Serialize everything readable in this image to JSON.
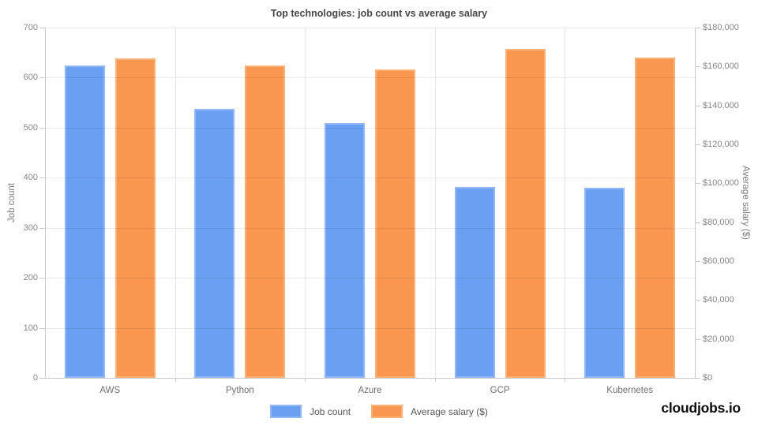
{
  "chart": {
    "footer_brand": "cloudjobs.io"
  },
  "chart_data": {
    "type": "bar",
    "title": "Top technologies: job count vs average salary",
    "categories": [
      "AWS",
      "Python",
      "Azure",
      "GCP",
      "Kubernetes"
    ],
    "series": [
      {
        "name": "Job count",
        "axis": "left",
        "color": "#6B9FF1",
        "border_color": "#92B7F5",
        "values": [
          624,
          538,
          510,
          382,
          380
        ]
      },
      {
        "name": "Average salary ($)",
        "axis": "right",
        "color": "#F9964F",
        "border_color": "#FAB279",
        "values": [
          164200,
          160600,
          158600,
          169100,
          164700
        ]
      }
    ],
    "left_axis": {
      "title": "Job count",
      "min": 0,
      "max": 700,
      "step": 100
    },
    "right_axis": {
      "title": "Average salary ($)",
      "min": 0,
      "max": 180000,
      "step": 20000,
      "tick_prefix": "$"
    },
    "grid": true,
    "legend_position": "bottom"
  }
}
